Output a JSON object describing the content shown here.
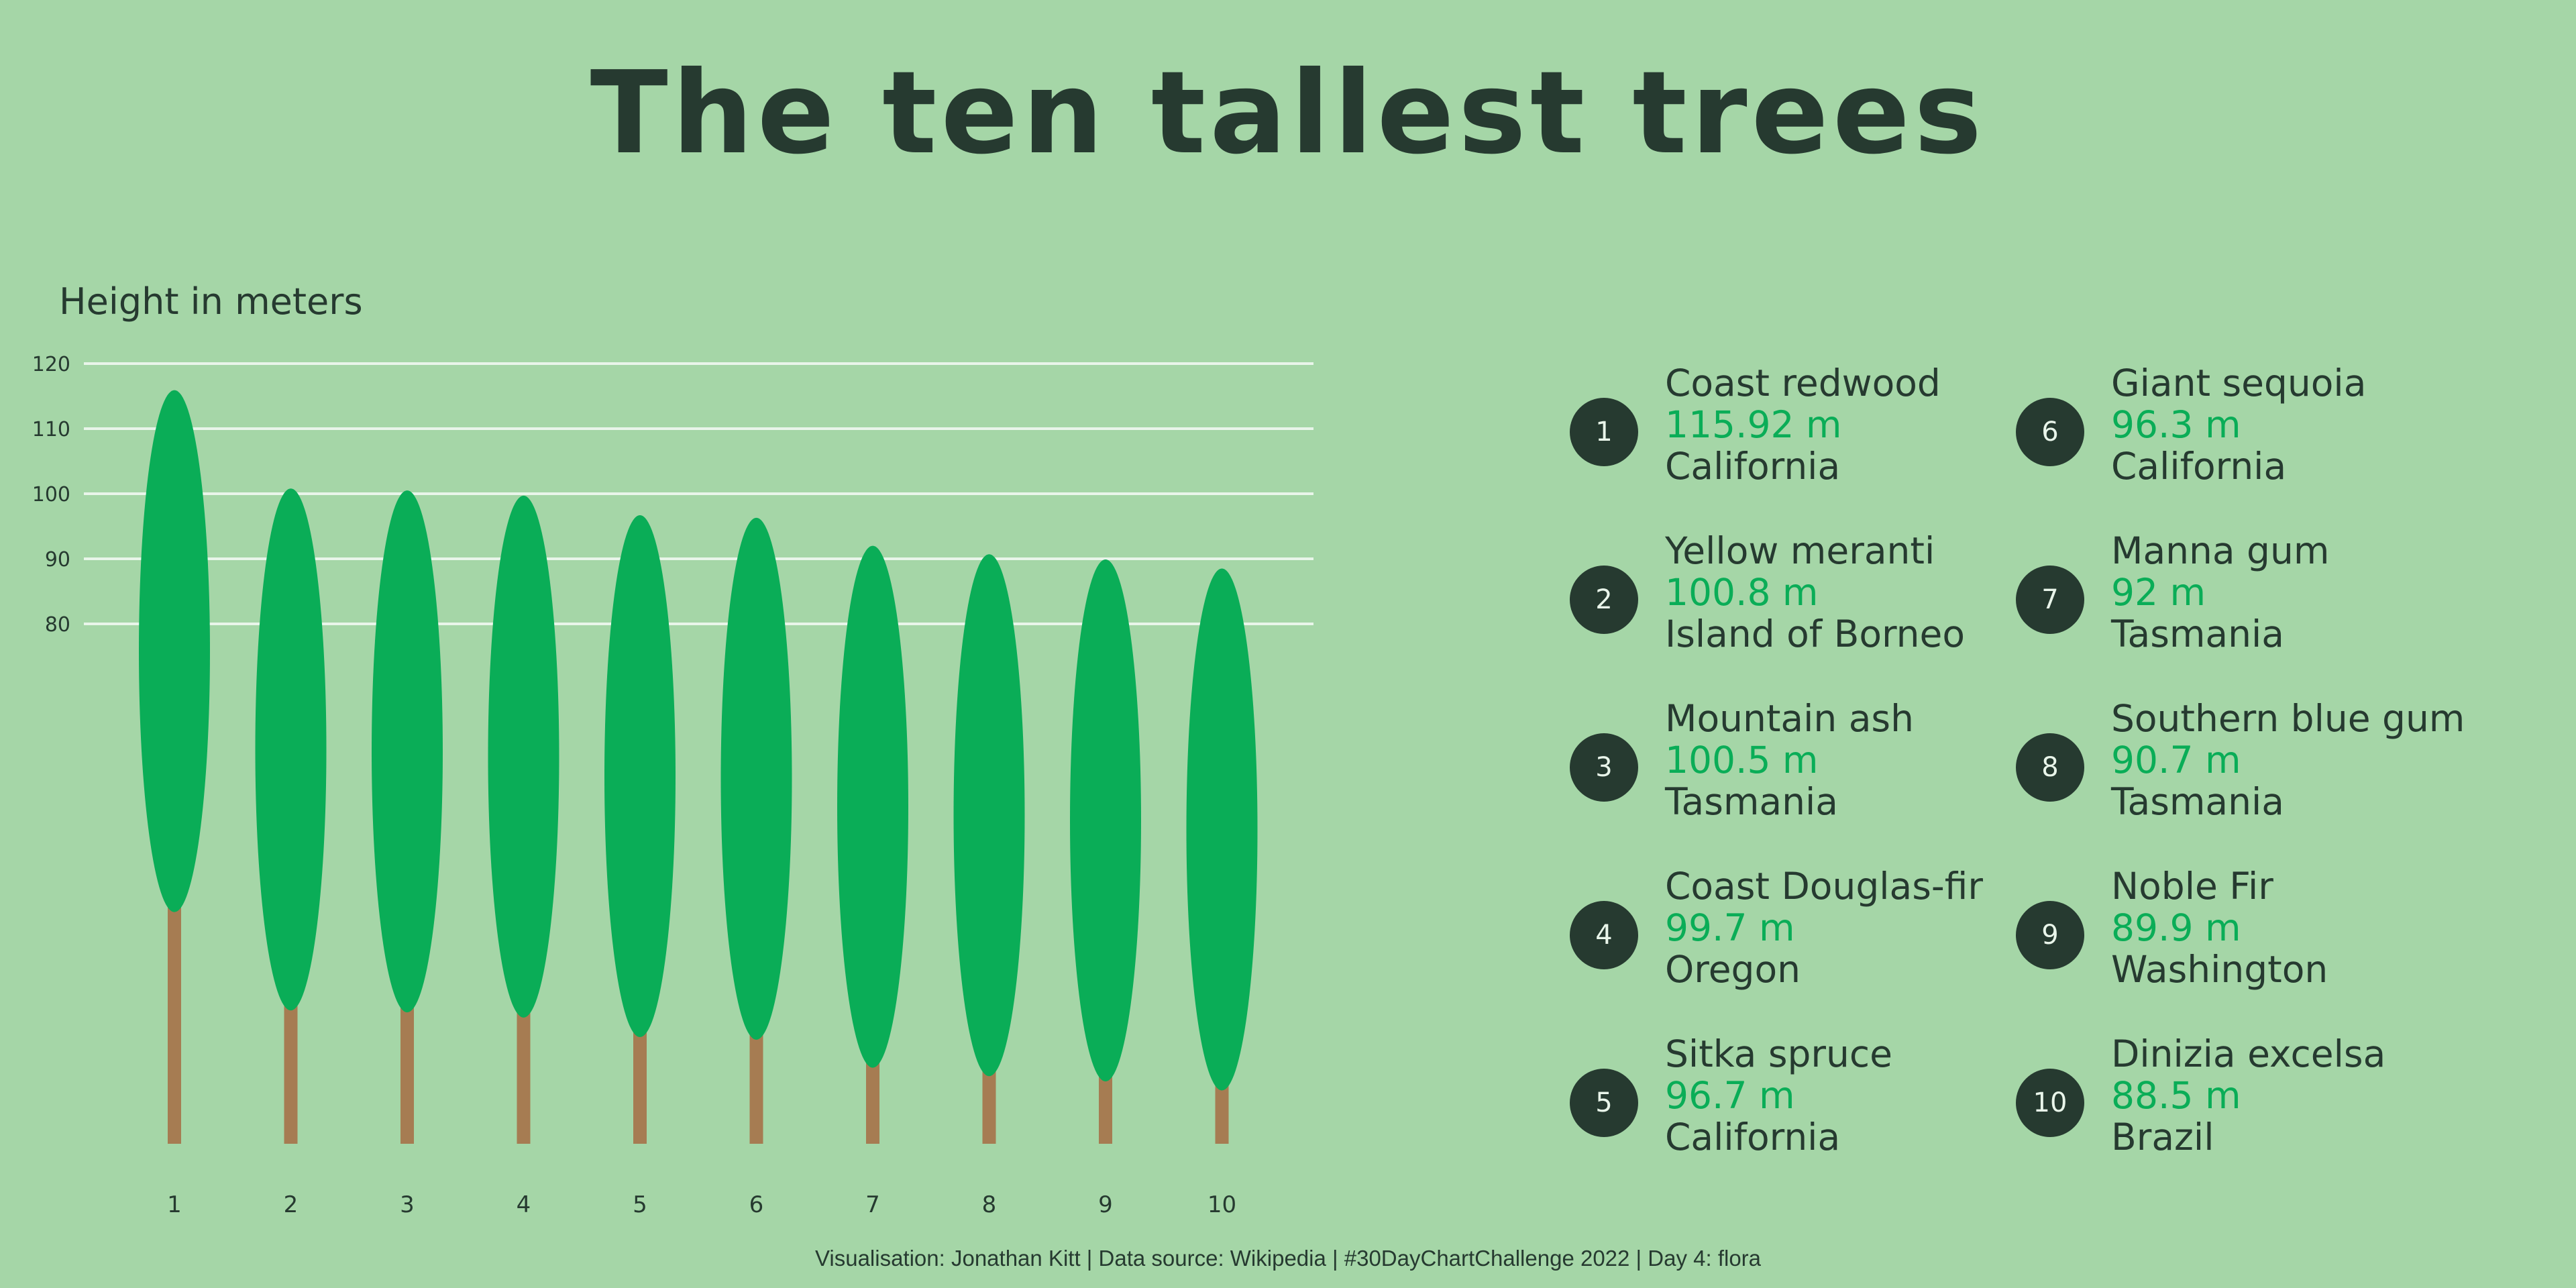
{
  "title": "The ten tallest trees",
  "caption": "Visualisation: Jonathan Kitt | Data source: Wikipedia | #30DayChartChallenge 2022 | Day 4: flora",
  "colors": {
    "background": "#a5d6a7",
    "canopy": "#0aad57",
    "trunk": "#a67c52",
    "text": "#263a30",
    "gridline": "#e9f5ea",
    "height_text": "#0aad57"
  },
  "chart_data": {
    "type": "bar",
    "ylabel": "Height in meters",
    "grid": true,
    "yticks": [
      80,
      90,
      100,
      110,
      120
    ],
    "categories": [
      "1",
      "2",
      "3",
      "4",
      "5",
      "6",
      "7",
      "8",
      "9",
      "10"
    ],
    "values": [
      115.92,
      100.8,
      100.5,
      99.7,
      96.7,
      96.3,
      92,
      90.7,
      89.9,
      88.5
    ]
  },
  "legend": [
    {
      "rank": "1",
      "name": "Coast redwood",
      "height": "115.92 m",
      "location": "California"
    },
    {
      "rank": "2",
      "name": "Yellow meranti",
      "height": "100.8 m",
      "location": "Island of Borneo"
    },
    {
      "rank": "3",
      "name": "Mountain ash",
      "height": "100.5 m",
      "location": "Tasmania"
    },
    {
      "rank": "4",
      "name": "Coast Douglas-fir",
      "height": "99.7 m",
      "location": "Oregon"
    },
    {
      "rank": "5",
      "name": "Sitka spruce",
      "height": "96.7 m",
      "location": "California"
    },
    {
      "rank": "6",
      "name": "Giant sequoia",
      "height": "96.3 m",
      "location": "California"
    },
    {
      "rank": "7",
      "name": "Manna gum",
      "height": "92 m",
      "location": "Tasmania"
    },
    {
      "rank": "8",
      "name": "Southern blue gum",
      "height": "90.7 m",
      "location": "Tasmania"
    },
    {
      "rank": "9",
      "name": "Noble Fir",
      "height": "89.9 m",
      "location": "Washington"
    },
    {
      "rank": "10",
      "name": "Dinizia excelsa",
      "height": "88.5 m",
      "location": "Brazil"
    }
  ]
}
